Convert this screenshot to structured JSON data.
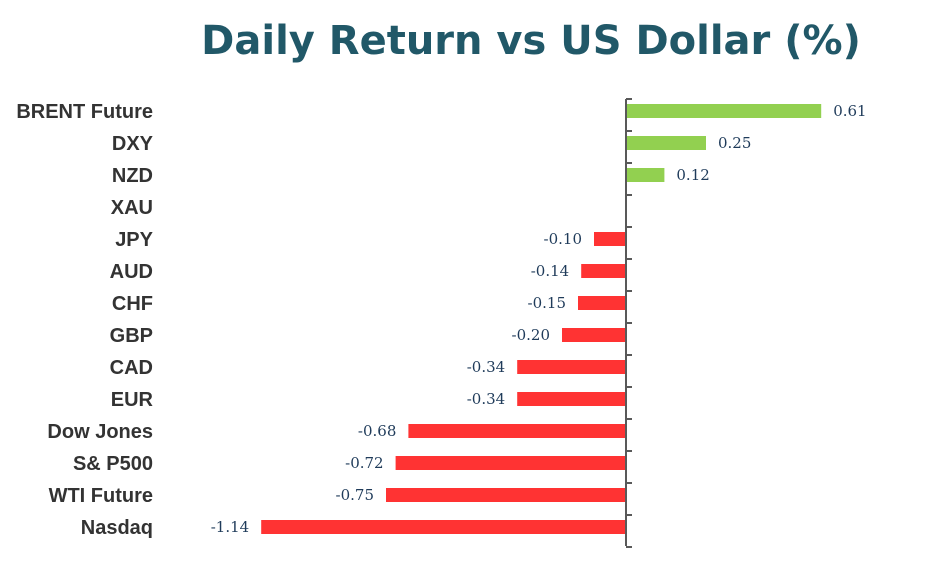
{
  "colors": {
    "positive": "#92d050",
    "negative": "#ff3333",
    "axis": "#595959",
    "title": "#215868"
  },
  "chart_data": {
    "type": "bar",
    "orientation": "horizontal",
    "title": "Daily Return vs US Dollar (%)",
    "xlabel": "",
    "ylabel": "",
    "grid": false,
    "legend": "none",
    "categories": [
      "BRENT Future",
      "DXY",
      "NZD",
      "XAU",
      "JPY",
      "AUD",
      "CHF",
      "GBP",
      "CAD",
      "EUR",
      "Dow Jones",
      "S& P500",
      "WTI Future",
      "Nasdaq"
    ],
    "values": [
      0.61,
      0.25,
      0.12,
      null,
      -0.1,
      -0.14,
      -0.15,
      -0.2,
      -0.34,
      -0.34,
      -0.68,
      -0.72,
      -0.75,
      -1.14
    ],
    "value_labels": [
      "0.61",
      "0.25",
      "0.12",
      "",
      "-0.10",
      "-0.14",
      "-0.15",
      "-0.20",
      "-0.34",
      "-0.34",
      "-0.68",
      "-0.72",
      "-0.75",
      "-1.14"
    ]
  }
}
